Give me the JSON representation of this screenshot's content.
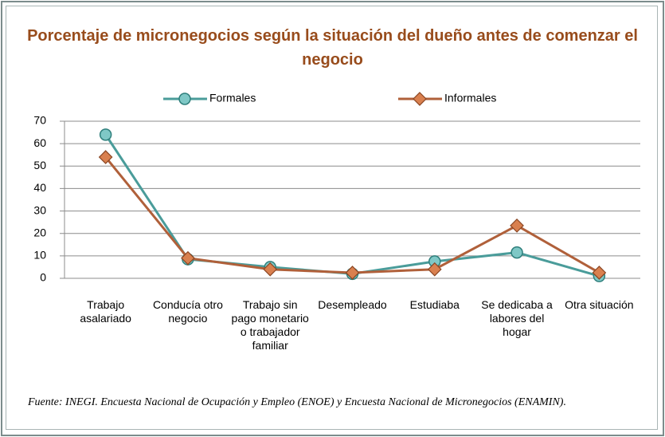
{
  "chart_data": {
    "type": "line",
    "title": "Porcentaje de micronegocios según la situación del dueño antes de comenzar el negocio",
    "categories": [
      "Trabajo asalariado",
      "Conducía otro negocio",
      "Trabajo sin pago monetario o trabajador familiar",
      "Desempleado",
      "Estudiaba",
      "Se dedicaba a labores del hogar",
      "Otra situación"
    ],
    "series": [
      {
        "name": "Formales",
        "color": "#4a9c9a",
        "values": [
          64,
          8.5,
          5,
          2,
          7.5,
          11.5,
          1
        ]
      },
      {
        "name": "Informales",
        "color": "#b0603a",
        "values": [
          54,
          9,
          4,
          2.5,
          4,
          23.5,
          2.5
        ]
      }
    ],
    "ylim": [
      0,
      70
    ],
    "yticks": [
      0,
      10,
      20,
      30,
      40,
      50,
      60,
      70
    ],
    "grid": true,
    "legend": "top",
    "source": "Fuente: INEGI. Encuesta Nacional de Ocupación y Empleo (ENOE) y Encuesta Nacional de Micronegocios (ENAMIN)."
  }
}
